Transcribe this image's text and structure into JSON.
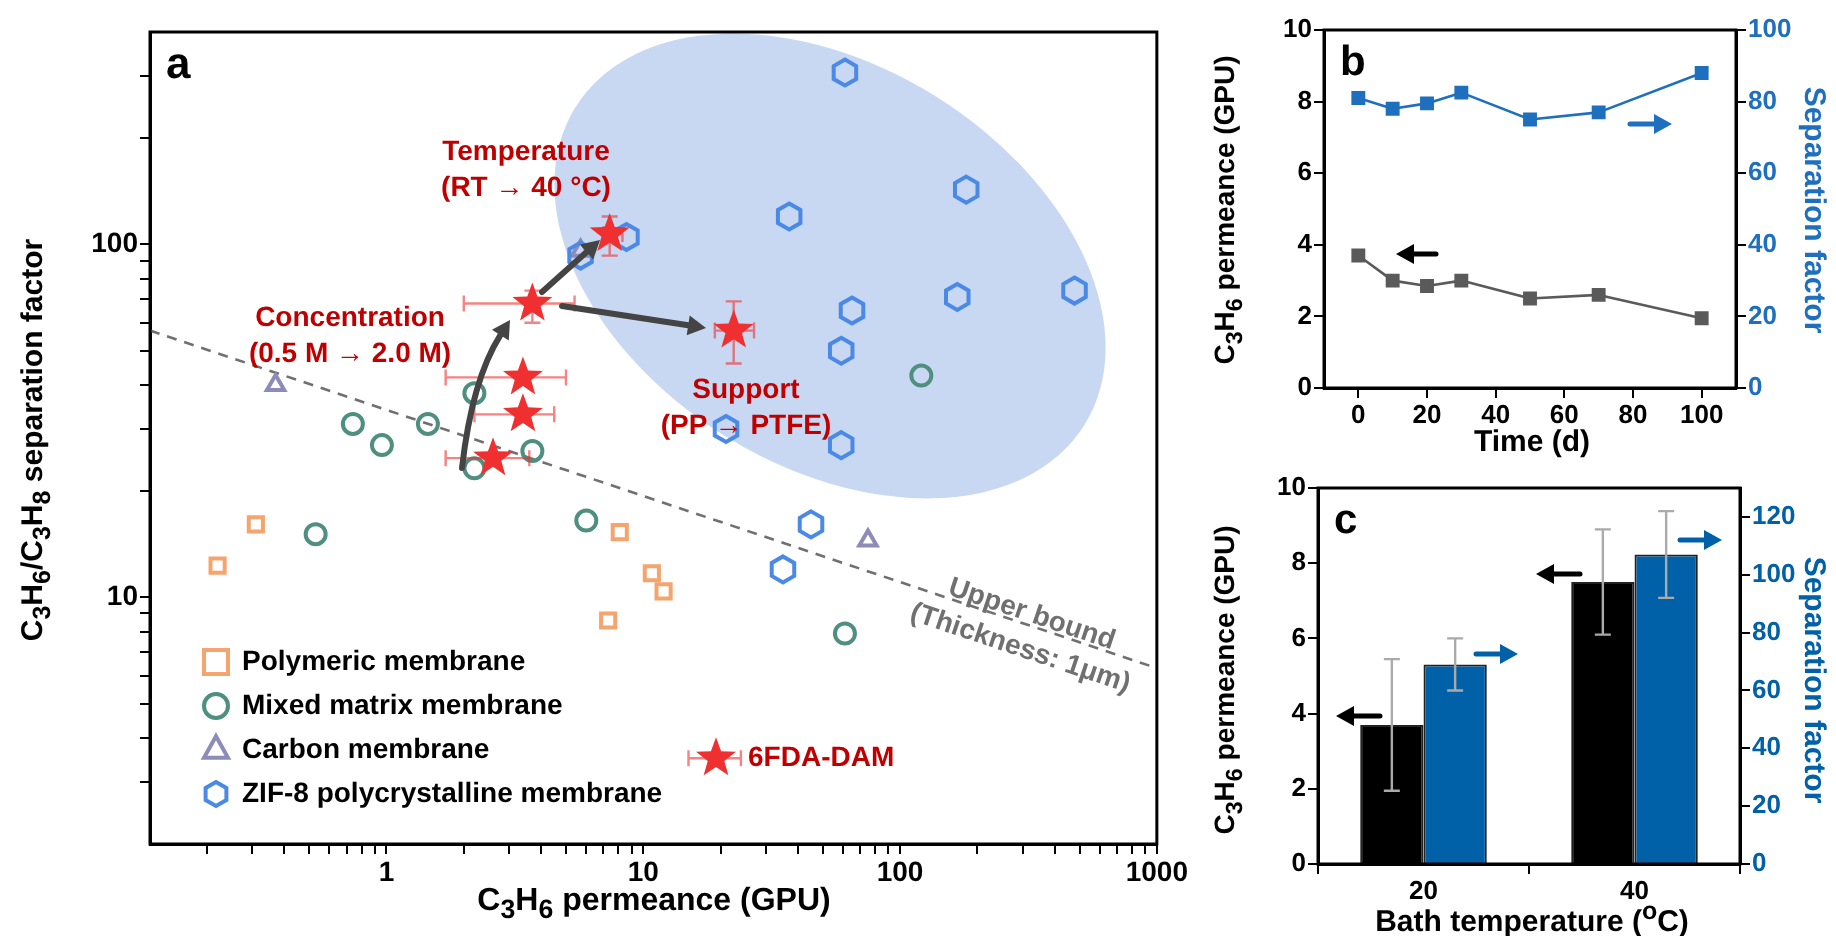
{
  "chart_data": [
    {
      "type": "scatter",
      "title": "a",
      "xlabel": "C$_{3}$H$_{6}$ permeance (GPU)",
      "ylabel": "C$_{3}$H$_{6}$/C$_{3}$H$_{8}$ separation factor",
      "log": "xy",
      "xlim": [
        0.12,
        1000
      ],
      "ylim": [
        2,
        400
      ],
      "xticks": [
        {
          "value": 0.2,
          "label": null
        },
        {
          "value": 0.3,
          "label": null
        },
        {
          "value": 0.4,
          "label": null
        },
        {
          "value": 0.5,
          "label": null
        },
        {
          "value": 0.6,
          "label": null
        },
        {
          "value": 0.7,
          "label": null
        },
        {
          "value": 0.8,
          "label": null
        },
        {
          "value": 0.9,
          "label": null
        },
        1,
        {
          "value": 2,
          "label": null
        },
        {
          "value": 3,
          "label": null
        },
        {
          "value": 4,
          "label": null
        },
        {
          "value": 5,
          "label": null
        },
        {
          "value": 6,
          "label": null
        },
        {
          "value": 7,
          "label": null
        },
        {
          "value": 8,
          "label": null
        },
        {
          "value": 9,
          "label": null
        },
        10,
        {
          "value": 20,
          "label": null
        },
        {
          "value": 30,
          "label": null
        },
        {
          "value": 40,
          "label": null
        },
        {
          "value": 50,
          "label": null
        },
        {
          "value": 60,
          "label": null
        },
        {
          "value": 70,
          "label": null
        },
        {
          "value": 80,
          "label": null
        },
        {
          "value": 90,
          "label": null
        },
        100,
        {
          "value": 200,
          "label": null
        },
        {
          "value": 300,
          "label": null
        },
        {
          "value": 400,
          "label": null
        },
        {
          "value": 500,
          "label": null
        },
        {
          "value": 600,
          "label": null
        },
        {
          "value": 700,
          "label": null
        },
        {
          "value": 800,
          "label": null
        },
        {
          "value": 900,
          "label": null
        },
        1000
      ],
      "yticks": [
        {
          "value": 3,
          "label": null
        },
        {
          "value": 4,
          "label": null
        },
        {
          "value": 5,
          "label": null
        },
        {
          "value": 6,
          "label": null
        },
        {
          "value": 7,
          "label": null
        },
        {
          "value": 8,
          "label": null
        },
        {
          "value": 9,
          "label": null
        },
        10,
        {
          "value": 20,
          "label": null
        },
        {
          "value": 30,
          "label": null
        },
        {
          "value": 40,
          "label": null
        },
        {
          "value": 50,
          "label": null
        },
        {
          "value": 60,
          "label": null
        },
        {
          "value": 70,
          "label": null
        },
        {
          "value": 80,
          "label": null
        },
        {
          "value": 90,
          "label": null
        },
        100,
        {
          "value": 200,
          "label": null
        },
        {
          "value": 300,
          "label": null
        }
      ],
      "legend": "bottom left",
      "annotations": [
        "Temperature\n(RT → 40 °C)",
        "Concentration\n(0.5 M → 2.0 M)",
        "Support\n(PP → PTFE)",
        {
          "text": "Upper bound\n(Thickness: 1μm)",
          "x": 309,
          "y": 8
        }
      ],
      "series": [
        {
          "name": "Polymeric membrane",
          "marker": "square",
          "color": "#f4a46c",
          "x": [
            0.22,
            0.31,
            8.1,
            10.8,
            12,
            7.3
          ],
          "values": [
            12.3,
            16.1,
            15.3,
            11.7,
            10.4,
            8.6
          ]
        },
        {
          "name": "Mixed matrix membrane",
          "marker": "circle",
          "color": "#4f8f80",
          "x": [
            0.53,
            6.0,
            61,
            121,
            2.2,
            0.74,
            0.96,
            1.45,
            3.7,
            2.2
          ],
          "values": [
            15.1,
            16.5,
            7.9,
            42.5,
            37.9,
            31,
            27,
            31,
            26,
            23.2
          ]
        },
        {
          "name": "Carbon membrane",
          "marker": "triangle",
          "color": "#8d8cb8",
          "x": [
            0.37,
            5.7,
            75
          ],
          "values": [
            40,
            96,
            14.5
          ]
        },
        {
          "name": "ZIF-8 polycrystalline membrane",
          "color": "#4a8ae6",
          "x": [
            61,
            181,
            37,
            8.6,
            5.7,
            167,
            478,
            65,
            59,
            21,
            59,
            45,
            35
          ],
          "values": [
            307,
            143,
            120,
            105,
            93,
            71,
            74,
            65,
            50,
            30,
            27,
            16.1,
            12.0
          ]
        },
        {
          "marker": "star",
          "color": "#f03030",
          "x": [
            7.4,
            3.7,
            22.5,
            3.4,
            3.4,
            2.6
          ],
          "values": [
            107,
            68,
            57,
            42,
            33,
            24.8
          ],
          "errors": [
            [
              93,
              120
            ],
            [
              60,
              74
            ],
            [
              46,
              69
            ],
            null,
            null,
            null
          ],
          "xerrors": [
            [
              7.0,
              8.3
            ],
            [
              2.0,
              5.4
            ],
            [
              19,
              27
            ],
            [
              1.7,
              5.0
            ],
            [
              2.2,
              4.5
            ],
            [
              1.7,
              3.6
            ]
          ]
        },
        {
          "name": "6FDA-DAM",
          "marker": "star",
          "color": "#f03030",
          "x": [
            19.2
          ],
          "values": [
            3.5
          ],
          "xerrors": [
            [
              15,
              24
            ]
          ]
        },
        {
          "type": "line",
          "marker": "none",
          "line_style": "dashed",
          "color": "#707070",
          "x": [
            0.12,
            1000
          ],
          "values": [
            57,
            6.3
          ]
        }
      ]
    },
    {
      "type": "line",
      "title": "b",
      "xlabel": "Time (d)",
      "ylabel": "C$_{3}$H$_{6}$ permeance (GPU)",
      "y2label": "Separation factor",
      "marker": "square",
      "x": [
        0,
        10,
        20,
        30,
        50,
        70,
        100
      ],
      "xlim": [
        -10,
        110
      ],
      "xticks": [
        0,
        20,
        40,
        60,
        80,
        100
      ],
      "ylim": [
        0,
        10
      ],
      "yticks": [
        0,
        2,
        4,
        6,
        8,
        10
      ],
      "y2lim": [
        0,
        100
      ],
      "y2ticks": [
        0,
        20,
        40,
        60,
        80,
        100
      ],
      "series": [
        {
          "color": "#5a5a5a",
          "values": [
            3.7,
            3.0,
            2.85,
            3.0,
            2.5,
            2.6,
            1.95
          ]
        },
        {
          "color": "#1f6fbf",
          "axis": "y2",
          "values": [
            81,
            78,
            79.5,
            82.5,
            75,
            77,
            88
          ]
        }
      ]
    },
    {
      "type": "bar",
      "title": "c",
      "xlabel": "Bath temperature ($^{o}$C)",
      "ylabel": "C$_{3}$H$_{6}$ permeance (GPU)",
      "y2label": "Separation factor",
      "categories": [
        "20",
        "40"
      ],
      "ylim": [
        0,
        10
      ],
      "yticks": [
        0,
        2,
        4,
        6,
        8,
        10
      ],
      "y2lim": [
        0,
        130
      ],
      "y2ticks": [
        0,
        20,
        40,
        60,
        80,
        100,
        120
      ],
      "series": [
        {
          "color": "#000000",
          "values": [
            3.7,
            7.5
          ],
          "errors": [
            1.75,
            1.4
          ]
        },
        {
          "color": "#0060a8",
          "axis": "y2",
          "values": [
            69,
            107
          ],
          "errors": [
            9,
            15
          ]
        }
      ]
    }
  ]
}
